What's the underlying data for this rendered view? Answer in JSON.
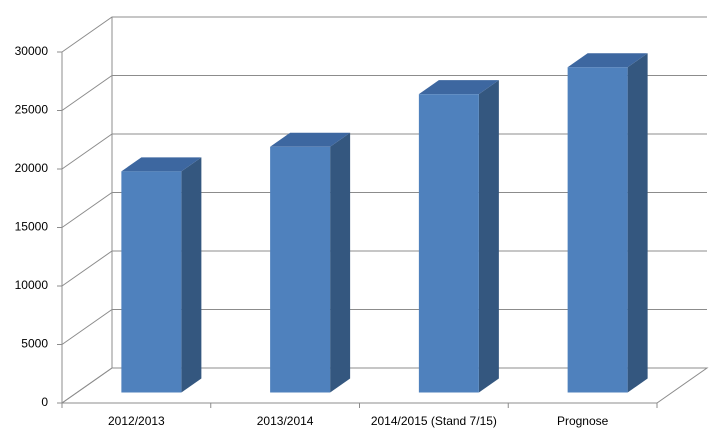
{
  "chart_data": {
    "type": "bar",
    "three_d": true,
    "categories": [
      "2012/2013",
      "2013/2014",
      "2014/2015 (Stand 7/15)",
      "Prognose"
    ],
    "values": [
      18900,
      21000,
      25500,
      27800
    ],
    "color": "#4f81bd",
    "ylim": [
      0,
      30000
    ],
    "yticks": [
      0,
      5000,
      10000,
      15000,
      20000,
      25000,
      30000
    ],
    "grid": true
  }
}
